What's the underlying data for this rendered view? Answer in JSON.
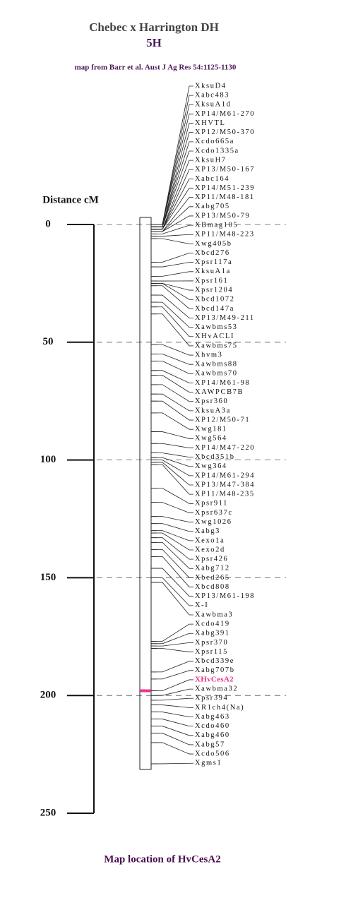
{
  "header": {
    "title": "Chebec x Harrington DH",
    "chromosome": "5H",
    "source": "map from Barr et al. Aust J Ag Res 54:1125-1130"
  },
  "axis": {
    "label": "Distance  cM",
    "lim": [
      0,
      250
    ],
    "ticks": [
      0,
      50,
      100,
      150,
      200,
      250
    ]
  },
  "highlight_color": "#e8348c",
  "markers": [
    {
      "label": "XksuD4",
      "position": 0
    },
    {
      "label": "Xabc483",
      "position": 0
    },
    {
      "label": "XksuA1d",
      "position": 0
    },
    {
      "label": "XP14/M61-270",
      "position": 0
    },
    {
      "label": "XHVTL",
      "position": 1
    },
    {
      "label": "XP12/M50-370",
      "position": 1
    },
    {
      "label": "Xcdo665a",
      "position": 1
    },
    {
      "label": "Xcdo1335a",
      "position": 1
    },
    {
      "label": "XksuH7",
      "position": 2
    },
    {
      "label": "XP13/M50-167",
      "position": 2
    },
    {
      "label": "Xabc164",
      "position": 2
    },
    {
      "label": "XP14/M51-239",
      "position": 2
    },
    {
      "label": "XP11/M48-181",
      "position": 3
    },
    {
      "label": "Xabg705",
      "position": 3
    },
    {
      "label": "XP13/M50-79",
      "position": 3
    },
    {
      "label": "XBmag105",
      "position": 4
    },
    {
      "label": "XP11/M48-223",
      "position": 5
    },
    {
      "label": "Xwg405b",
      "position": 6
    },
    {
      "label": "Xbcd276",
      "position": 16
    },
    {
      "label": "Xpsr117a",
      "position": 18
    },
    {
      "label": "XksuA1a",
      "position": 22
    },
    {
      "label": "Xpsr161",
      "position": 24
    },
    {
      "label": "Xpsr1204",
      "position": 25
    },
    {
      "label": "Xbcd1072",
      "position": 25
    },
    {
      "label": "Xbcd147a",
      "position": 26
    },
    {
      "label": "XP13/M49-211",
      "position": 30
    },
    {
      "label": "Xawbms53",
      "position": 33
    },
    {
      "label": "XHvACLI",
      "position": 35
    },
    {
      "label": "Xawbms75",
      "position": 38
    },
    {
      "label": "Xhvm3",
      "position": 51
    },
    {
      "label": "Xawbms88",
      "position": 55
    },
    {
      "label": "Xawbms70",
      "position": 58
    },
    {
      "label": "XP14/M61-98",
      "position": 62
    },
    {
      "label": "XAWPCB7B",
      "position": 64
    },
    {
      "label": "Xpsr360",
      "position": 68
    },
    {
      "label": "XksuA3a",
      "position": 72
    },
    {
      "label": "XP12/M50-71",
      "position": 75
    },
    {
      "label": "Xwg181",
      "position": 80
    },
    {
      "label": "Xwg564",
      "position": 88
    },
    {
      "label": "XP14/M47-220",
      "position": 93
    },
    {
      "label": "Xbcd351b",
      "position": 97
    },
    {
      "label": "Xwg364",
      "position": 99
    },
    {
      "label": "XP14/M61-294",
      "position": 100
    },
    {
      "label": "XP13/M47-384",
      "position": 101
    },
    {
      "label": "XP11/M48-235",
      "position": 102
    },
    {
      "label": "Xpsr911",
      "position": 112
    },
    {
      "label": "Xpsr637c",
      "position": 118
    },
    {
      "label": "Xwg1026",
      "position": 124
    },
    {
      "label": "Xabg3",
      "position": 127
    },
    {
      "label": "Xexo1a",
      "position": 130
    },
    {
      "label": "Xexo2d",
      "position": 131
    },
    {
      "label": "Xpsr426",
      "position": 133
    },
    {
      "label": "Xabg712",
      "position": 135
    },
    {
      "label": "Xbcd265",
      "position": 138
    },
    {
      "label": "Xbcd808",
      "position": 141
    },
    {
      "label": "XP13/M61-198",
      "position": 146
    },
    {
      "label": "X-I",
      "position": 150
    },
    {
      "label": "Xawbma3",
      "position": 152
    },
    {
      "label": "Xcdo419",
      "position": 177
    },
    {
      "label": "Xabg391",
      "position": 178
    },
    {
      "label": "Xpsr370",
      "position": 179
    },
    {
      "label": "Xpsr115",
      "position": 180
    },
    {
      "label": "Xbcd339e",
      "position": 190
    },
    {
      "label": "Xabg707b",
      "position": 193
    },
    {
      "label": "XHvCesA2",
      "position": 198,
      "highlight": true
    },
    {
      "label": "Xawbma32",
      "position": 200
    },
    {
      "label": "Xpsr394",
      "position": 202
    },
    {
      "label": "XR1ch4(Na)",
      "position": 204
    },
    {
      "label": "Xabg463",
      "position": 207
    },
    {
      "label": "Xcdo460",
      "position": 210
    },
    {
      "label": "Xabg460",
      "position": 213
    },
    {
      "label": "Xabg57",
      "position": 216
    },
    {
      "label": "Xcdo506",
      "position": 220
    },
    {
      "label": "Xgms1",
      "position": 229
    }
  ],
  "caption": "Map location of HvCesA2"
}
